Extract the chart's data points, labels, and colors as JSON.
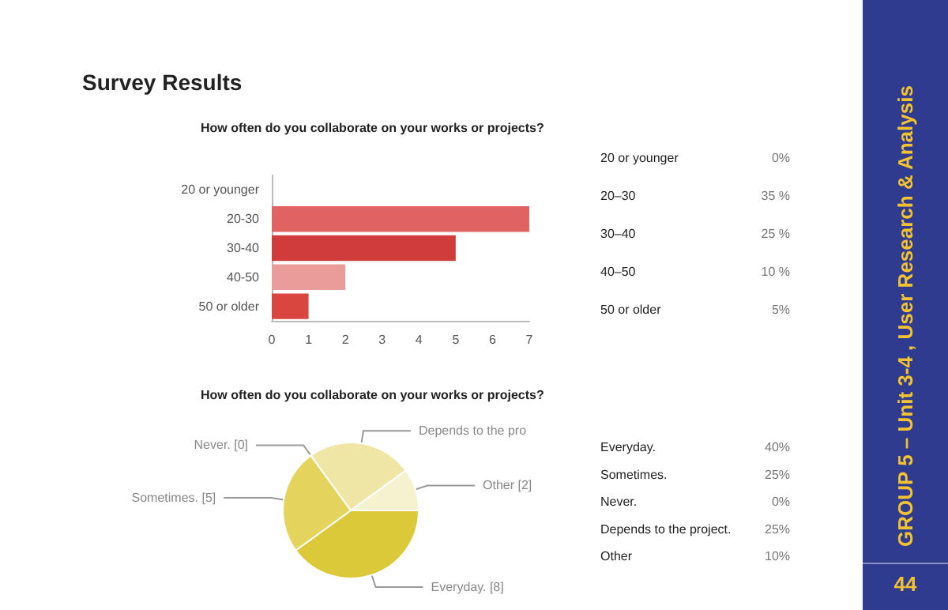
{
  "chart_data": [
    {
      "type": "bar",
      "title": "Survey Results",
      "subtitle": "How often do you collaborate on your works or projects?",
      "orientation": "horizontal",
      "categories": [
        "20 or younger",
        "20-30",
        "30-40",
        "40-50",
        "50 or older"
      ],
      "values": [
        0,
        7,
        5,
        2,
        1
      ],
      "colors": [
        "#e06666",
        "#e06262",
        "#d03c3c",
        "#e99c9a",
        "#d9463f"
      ],
      "xlim": [
        0,
        7
      ],
      "xticks": [
        0,
        1,
        2,
        3,
        4,
        5,
        6,
        7
      ],
      "annotations": [
        "20 or younger",
        "0%",
        "20–30",
        "35 %",
        "30–40",
        "25 %",
        "40–50",
        "10 %",
        "50 or older",
        "5%"
      ]
    },
    {
      "type": "pie",
      "title": "How often do you collaborate on your works or projects?",
      "categories": [
        "Everyday. [8]",
        "Sometimes. [5]",
        "Never. [0]",
        "Depends to the pro",
        "Other [2]"
      ],
      "values": [
        8,
        5,
        0,
        5,
        2
      ],
      "colors": [
        "#dcc93a",
        "#e4d45e",
        "#e4d45e",
        "#efe6a6",
        "#f6f1cf"
      ],
      "annotations": [
        "Everyday.",
        "40%",
        "Sometimes.",
        "25%",
        "Never.",
        "0%",
        "Depends to the project.",
        "25%",
        "Other",
        "10%",
        "GROUP 5 – Unit 3-4 , User Research & Analysis",
        "44"
      ]
    }
  ]
}
